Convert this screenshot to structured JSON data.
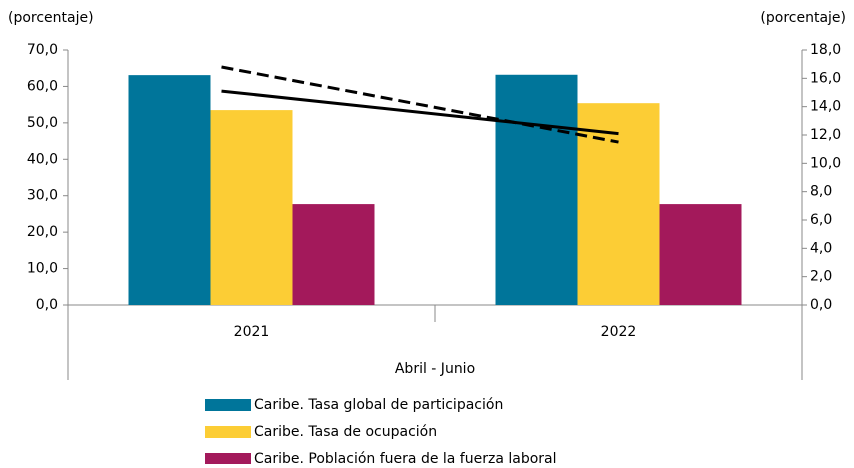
{
  "chart_data": {
    "type": "bar",
    "y_label": "(porcentaje)",
    "y2_label": "(porcentaje)",
    "x_label": "Abril - Junio",
    "categories": [
      "2021",
      "2022"
    ],
    "ylim": [
      0,
      70
    ],
    "yticks": [
      {
        "value": 0,
        "label": "0,0"
      },
      {
        "value": 10,
        "label": "10,0"
      },
      {
        "value": 20,
        "label": "20,0"
      },
      {
        "value": 30,
        "label": "30,0"
      },
      {
        "value": 40,
        "label": "40,0"
      },
      {
        "value": 50,
        "label": "50,0"
      },
      {
        "value": 60,
        "label": "60,0"
      },
      {
        "value": 70,
        "label": "70,0"
      }
    ],
    "y2lim": [
      0,
      18
    ],
    "y2ticks": [
      {
        "value": 0,
        "label": "0,0"
      },
      {
        "value": 2,
        "label": "2,0"
      },
      {
        "value": 4,
        "label": "4,0"
      },
      {
        "value": 6,
        "label": "6,0"
      },
      {
        "value": 8,
        "label": "8,0"
      },
      {
        "value": 10,
        "label": "10,0"
      },
      {
        "value": 12,
        "label": "12,0"
      },
      {
        "value": 14,
        "label": "14,0"
      },
      {
        "value": 16,
        "label": "16,0"
      },
      {
        "value": 18,
        "label": "18,0"
      }
    ],
    "series": [
      {
        "name": "Caribe. Tasa global de participación",
        "color": "#00759a",
        "values": [
          63.1,
          63.2
        ]
      },
      {
        "name": "Caribe. Tasa de ocupación",
        "color": "#fccd35",
        "values": [
          53.5,
          55.4
        ]
      },
      {
        "name": "Caribe. Población fuera de la fuerza laboral",
        "color": "#a3195b",
        "values": [
          27.7,
          27.7
        ]
      },
      {
        "type": "line",
        "axis": "y2",
        "color": "#000000",
        "dash": false,
        "values": [
          15.1,
          12.1
        ]
      },
      {
        "type": "line",
        "axis": "y2",
        "color": "#000000",
        "dash": true,
        "values": [
          16.8,
          11.5
        ]
      }
    ]
  }
}
